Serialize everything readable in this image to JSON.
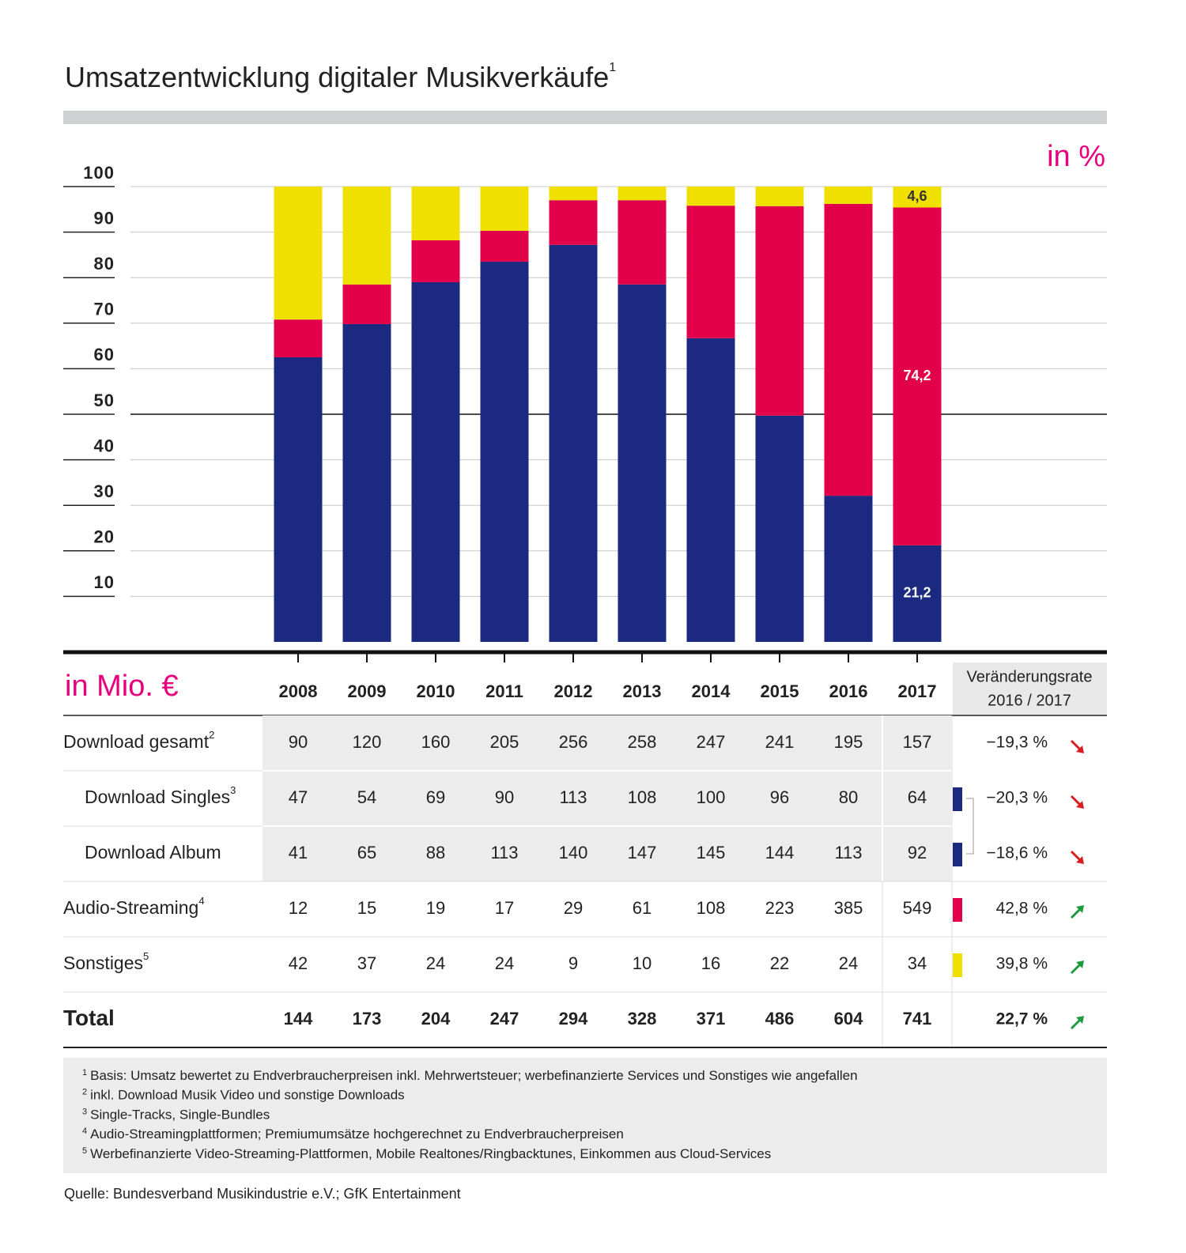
{
  "chart_data": {
    "type": "bar",
    "stacked": true,
    "title": "Umsatzentwicklung digitaler Musikverkäufe",
    "title_note": "1",
    "unit_label": "in %",
    "categories": [
      "2008",
      "2009",
      "2010",
      "2011",
      "2012",
      "2013",
      "2014",
      "2015",
      "2016",
      "2017"
    ],
    "series": [
      {
        "color": "#1b2a80",
        "values": [
          62.5,
          69.8,
          79.0,
          83.5,
          87.2,
          78.5,
          66.7,
          49.7,
          32.1,
          21.2
        ],
        "value_labels": [
          null,
          null,
          null,
          null,
          null,
          null,
          null,
          null,
          null,
          "21,2"
        ]
      },
      {
        "color": "#e2004a",
        "values": [
          8.3,
          8.7,
          9.2,
          6.8,
          9.8,
          18.5,
          29.1,
          46.0,
          64.1,
          74.2
        ],
        "value_labels": [
          null,
          null,
          null,
          null,
          null,
          null,
          null,
          null,
          null,
          "74,2"
        ]
      },
      {
        "color": "#f0e000",
        "values": [
          29.2,
          21.5,
          11.8,
          9.7,
          3.0,
          3.0,
          4.2,
          4.3,
          3.8,
          4.6
        ],
        "value_labels": [
          null,
          null,
          null,
          null,
          null,
          null,
          null,
          null,
          null,
          "4,6"
        ]
      }
    ],
    "ylim": [
      0,
      100
    ],
    "yticks": [
      10,
      20,
      30,
      40,
      50,
      60,
      70,
      80,
      90,
      100
    ],
    "grid": true
  },
  "table": {
    "unit_label": "in Mio. €",
    "change_header": [
      "Veränderungsrate",
      "2016 / 2017"
    ],
    "rows": [
      {
        "label": "Download gesamt",
        "note": "2",
        "values": [
          90,
          120,
          160,
          205,
          256,
          258,
          247,
          241,
          195,
          157
        ],
        "change": "−19,3 %",
        "trend": "down"
      },
      {
        "label": "Download Singles",
        "note": "3",
        "values": [
          47,
          54,
          69,
          90,
          113,
          108,
          100,
          96,
          80,
          64
        ],
        "change": "−20,3 %",
        "trend": "down",
        "marker": "#1b2a80"
      },
      {
        "label": "Download Album",
        "values": [
          41,
          65,
          88,
          113,
          140,
          147,
          145,
          144,
          113,
          92
        ],
        "change": "−18,6 %",
        "trend": "down",
        "marker": "#1b2a80"
      },
      {
        "label": "Audio-Streaming",
        "note": "4",
        "values": [
          12,
          15,
          19,
          17,
          29,
          61,
          108,
          223,
          385,
          549
        ],
        "change": "42,8 %",
        "trend": "up",
        "marker": "#e2004a"
      },
      {
        "label": "Sonstiges",
        "note": "5",
        "values": [
          42,
          37,
          24,
          24,
          9,
          10,
          16,
          22,
          24,
          34
        ],
        "change": "39,8 %",
        "trend": "up",
        "marker": "#f0e000"
      },
      {
        "label": "Total",
        "values": [
          144,
          173,
          204,
          247,
          294,
          328,
          371,
          486,
          604,
          741
        ],
        "change": "22,7 %",
        "trend": "up"
      }
    ]
  },
  "footnotes": [
    {
      "mark": "1",
      "text": "Basis: Umsatz bewertet zu Endverbraucherpreisen inkl. Mehrwertsteuer; werbefinanzierte Services und Sonstiges wie angefallen"
    },
    {
      "mark": "2",
      "text": "inkl. Download Musik Video und sonstige Downloads"
    },
    {
      "mark": "3",
      "text": "Single-Tracks, Single-Bundles"
    },
    {
      "mark": "4",
      "text": "Audio-Streamingplattformen; Premiumumsätze hochgerechnet zu Endverbraucherpreisen"
    },
    {
      "mark": "5",
      "text": "Werbefinanzierte Video-Streaming-Plattformen, Mobile Realtones/Ringbacktunes, Einkommen aus Cloud-Services"
    }
  ],
  "source": "Quelle: Bundesverband Musikindustrie e.V.; GfK Entertainment"
}
